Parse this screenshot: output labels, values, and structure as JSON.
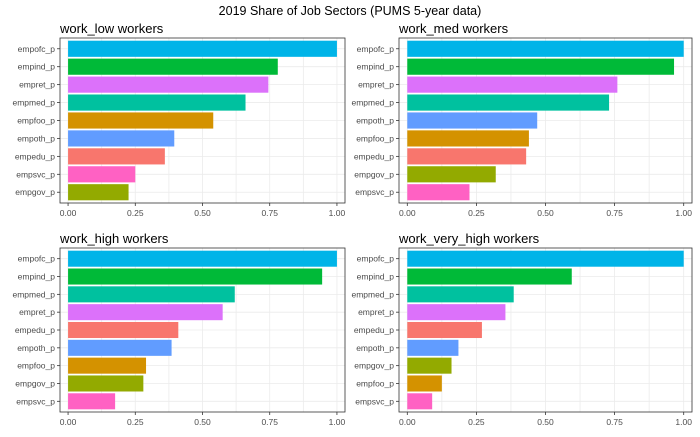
{
  "title": "2019 Share of Job Sectors (PUMS 5-year data)",
  "colors": {
    "empofc_p": "#00B4E8",
    "empind_p": "#00BA38",
    "empret_p": "#DC71FA",
    "empmed_p": "#00C19F",
    "empfoo_p": "#D49200",
    "empoth_p": "#619CFF",
    "empedu_p": "#F8766D",
    "empsvc_p": "#FF61C3",
    "empgov_p": "#93AA00",
    "panel_bg": "#FFFFFF",
    "grid": "#EBEBEB",
    "panel_border": "#333333",
    "axis_text": "#4D4D4D"
  },
  "chart_data": [
    {
      "type": "bar",
      "orientation": "horizontal",
      "title": "work_low workers",
      "categories": [
        "empofc_p",
        "empind_p",
        "empret_p",
        "empmed_p",
        "empfoo_p",
        "empoth_p",
        "empedu_p",
        "empsvc_p",
        "empgov_p"
      ],
      "values": [
        1.0,
        0.78,
        0.745,
        0.66,
        0.54,
        0.395,
        0.36,
        0.25,
        0.225
      ],
      "xlim": [
        0,
        1
      ],
      "xticks": [
        "0.00",
        "0.25",
        "0.50",
        "0.75",
        "1.00"
      ]
    },
    {
      "type": "bar",
      "orientation": "horizontal",
      "title": "work_med workers",
      "categories": [
        "empofc_p",
        "empind_p",
        "empret_p",
        "empmed_p",
        "empoth_p",
        "empfoo_p",
        "empedu_p",
        "empgov_p",
        "empsvc_p"
      ],
      "values": [
        1.0,
        0.965,
        0.76,
        0.73,
        0.47,
        0.44,
        0.43,
        0.32,
        0.225
      ],
      "xlim": [
        0,
        1
      ],
      "xticks": [
        "0.00",
        "0.25",
        "0.50",
        "0.75",
        "1.00"
      ]
    },
    {
      "type": "bar",
      "orientation": "horizontal",
      "title": "work_high workers",
      "categories": [
        "empofc_p",
        "empind_p",
        "empmed_p",
        "empret_p",
        "empedu_p",
        "empoth_p",
        "empfoo_p",
        "empgov_p",
        "empsvc_p"
      ],
      "values": [
        1.0,
        0.945,
        0.62,
        0.575,
        0.41,
        0.385,
        0.29,
        0.28,
        0.175
      ],
      "xlim": [
        0,
        1
      ],
      "xticks": [
        "0.00",
        "0.25",
        "0.50",
        "0.75",
        "1.00"
      ]
    },
    {
      "type": "bar",
      "orientation": "horizontal",
      "title": "work_very_high workers",
      "categories": [
        "empofc_p",
        "empind_p",
        "empmed_p",
        "empret_p",
        "empedu_p",
        "empoth_p",
        "empgov_p",
        "empfoo_p",
        "empsvc_p"
      ],
      "values": [
        1.0,
        0.595,
        0.385,
        0.355,
        0.27,
        0.185,
        0.16,
        0.125,
        0.09
      ],
      "xlim": [
        0,
        1
      ],
      "xticks": [
        "0.00",
        "0.25",
        "0.50",
        "0.75",
        "1.00"
      ]
    }
  ]
}
